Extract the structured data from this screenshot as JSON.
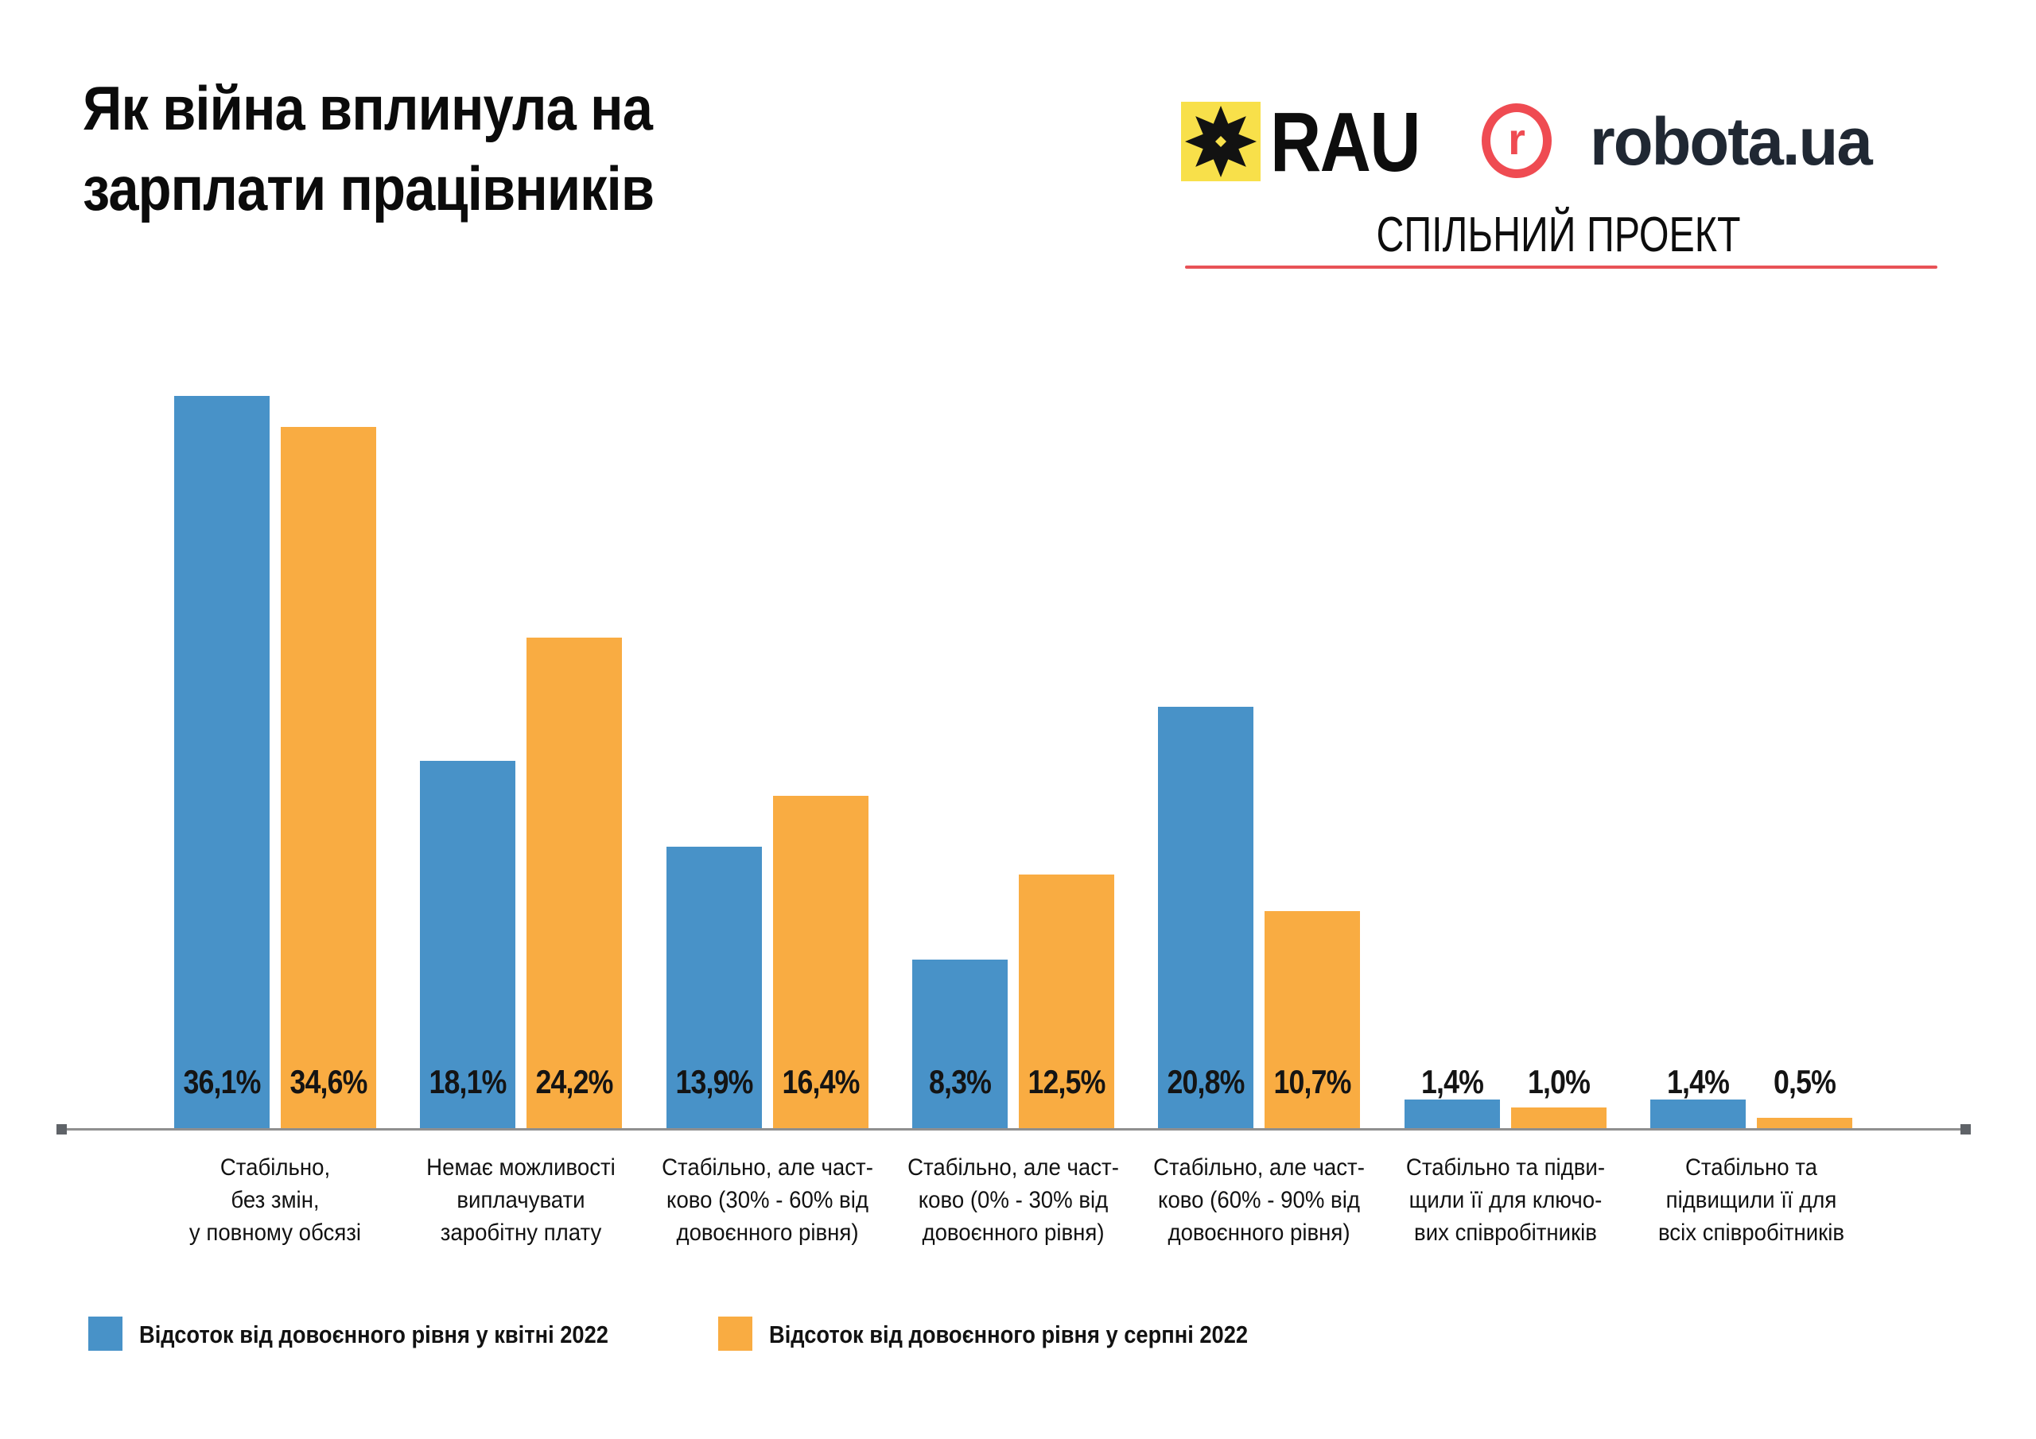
{
  "title": "Як війна вплинула на\nзарплати працівників",
  "header": {
    "rau_logo_text": "RAU",
    "robota_icon_letter": "r",
    "robota_logo_text": "robota.ua",
    "subtitle": "СПІЛЬНИЙ ПРОЕКТ"
  },
  "colors": {
    "april_blue": "#4892C8",
    "august_orange": "#F9AC42",
    "rau_yellow": "#F8E04A",
    "logo_red": "#EF4B52",
    "underline_red": "#E85257",
    "axis_gray": "#8F8F8F",
    "axis_cap_gray": "#5F6368",
    "text_black": "#111111"
  },
  "chart_data": {
    "type": "bar",
    "title": "Як війна вплинула на зарплати працівників",
    "xlabel": "",
    "ylabel": "",
    "ylim": [
      0,
      40
    ],
    "grid": false,
    "legend_position": "bottom-left",
    "value_label_format": "comma-decimal-percent",
    "categories": [
      "Стабільно,\nбез змін,\nу повному обсязі",
      "Немає можливості\nвиплачувати\nзаробітну плату",
      "Стабільно, але част-\nково (30% - 60% від\nдовоєнного рівня)",
      "Стабільно, але част-\nково (0% - 30% від\nдовоєнного рівня)",
      "Стабільно, але част-\nково (60% - 90% від\nдовоєнного рівня)",
      "Стабільно та підви-\nщили її для ключо-\nвих співробітників",
      "Стабільно та\nпідвищили її для\nвсіх співробітників"
    ],
    "series": [
      {
        "name": "Відсоток від довоєнного рівня у квітні 2022",
        "color": "#4892C8",
        "values": [
          36.1,
          18.1,
          13.9,
          8.3,
          20.8,
          1.4,
          1.4
        ],
        "labels": [
          "36,1%",
          "18,1%",
          "13,9%",
          "8,3%",
          "20,8%",
          "1,4%",
          "1,4%"
        ]
      },
      {
        "name": "Відсоток від довоєнного рівня у серпні 2022",
        "color": "#F9AC42",
        "values": [
          34.6,
          24.2,
          16.4,
          12.5,
          10.7,
          1.0,
          0.5
        ],
        "labels": [
          "34,6%",
          "24,2%",
          "16,4%",
          "12,5%",
          "10,7%",
          "1,0%",
          "0,5%"
        ]
      }
    ]
  }
}
